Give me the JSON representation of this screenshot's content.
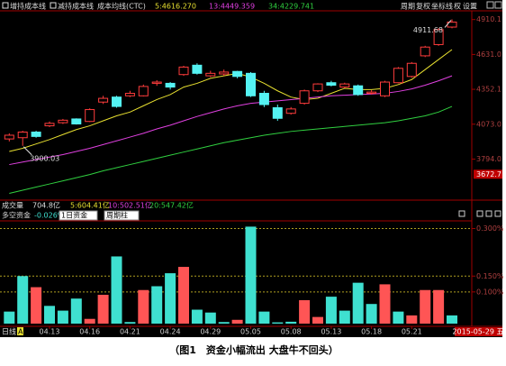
{
  "toolbar": {
    "left": [
      "增持成本线",
      "减持成本线",
      "成本均线(CTC)"
    ],
    "right": [
      "周期",
      "复权",
      "坐标线",
      "权",
      "设置"
    ]
  },
  "volume_header": [
    "成交量",
    "704.8亿",
    "5:604.41亿",
    "10:502.51亿",
    "20:547.42亿"
  ],
  "indicator_header": {
    "title": "多空资金",
    "current": "-0.026%",
    "dropdowns": [
      "1日资金",
      "周期柱"
    ]
  },
  "status": {
    "period": "日线",
    "mode": "A",
    "date": "2015-05-29 五"
  },
  "caption": "（图1　资金小幅流出 大盘牛不回头）",
  "chart_data": [
    {
      "type": "candlestick",
      "up_color": "#ff3c3c",
      "down_color": "#54f2f2",
      "grid": false,
      "open": [
        3955,
        3965,
        4010,
        4060,
        4085,
        4115,
        4095,
        4250,
        4290,
        4300,
        4300,
        4400,
        4400,
        4470,
        4545,
        4460,
        4475,
        4495,
        4480,
        4320,
        4205,
        4160,
        4240,
        4340,
        4405,
        4370,
        4380,
        4320,
        4300,
        4405,
        4455,
        4620,
        4710,
        4850
      ],
      "high": [
        4000,
        4020,
        4020,
        4095,
        4115,
        4120,
        4200,
        4300,
        4300,
        4340,
        4390,
        4425,
        4410,
        4540,
        4560,
        4500,
        4510,
        4500,
        4490,
        4340,
        4230,
        4210,
        4350,
        4400,
        4420,
        4405,
        4390,
        4345,
        4420,
        4530,
        4570,
        4700,
        4840,
        4911.68
      ],
      "low": [
        3935,
        3900.03,
        3965,
        4050,
        4075,
        4070,
        4090,
        4235,
        4205,
        4290,
        4295,
        4380,
        4350,
        4460,
        4470,
        4450,
        4460,
        4440,
        4290,
        4210,
        4100,
        4150,
        4230,
        4330,
        4375,
        4360,
        4300,
        4310,
        4290,
        4400,
        4445,
        4610,
        4700,
        4840
      ],
      "close": [
        3985,
        4010,
        3975,
        4080,
        4105,
        4075,
        4190,
        4280,
        4215,
        4320,
        4375,
        4410,
        4370,
        4530,
        4480,
        4480,
        4490,
        4455,
        4300,
        4230,
        4120,
        4195,
        4340,
        4395,
        4385,
        4395,
        4310,
        4330,
        4410,
        4520,
        4560,
        4690,
        4830,
        4890
      ],
      "series": [
        {
          "name": "5:4616.270",
          "color": "#e8e030",
          "values": [
            3855,
            3880,
            3915,
            3950,
            3990,
            4030,
            4060,
            4100,
            4140,
            4170,
            4220,
            4270,
            4310,
            4370,
            4400,
            4440,
            4460,
            4480,
            4450,
            4400,
            4340,
            4290,
            4270,
            4280,
            4320,
            4360,
            4350,
            4350,
            4360,
            4390,
            4430,
            4510,
            4590,
            4670
          ]
        },
        {
          "name": "13:4449.359",
          "color": "#e040e0",
          "values": [
            3750,
            3770,
            3790,
            3810,
            3830,
            3855,
            3880,
            3910,
            3940,
            3970,
            4000,
            4035,
            4065,
            4100,
            4135,
            4165,
            4195,
            4220,
            4240,
            4250,
            4260,
            4270,
            4280,
            4290,
            4300,
            4305,
            4310,
            4315,
            4320,
            4335,
            4355,
            4385,
            4420,
            4460
          ]
        },
        {
          "name": "34:4229.741",
          "color": "#30d040",
          "values": [
            3520,
            3545,
            3570,
            3595,
            3620,
            3645,
            3670,
            3700,
            3725,
            3750,
            3775,
            3800,
            3825,
            3850,
            3875,
            3900,
            3925,
            3945,
            3965,
            3985,
            4000,
            4015,
            4025,
            4035,
            4045,
            4055,
            4065,
            4075,
            4085,
            4100,
            4120,
            4140,
            4170,
            4215
          ]
        }
      ],
      "ylim": [
        3480,
        4980
      ],
      "yticks": [
        4910.1,
        {
          "value": 4631,
          "label": "4631.0"
        },
        4352.1,
        {
          "value": 4073,
          "label": "4073.0"
        },
        {
          "value": 3794,
          "label": "3794.0"
        }
      ],
      "cursor_price": 3672.7
    },
    {
      "type": "bar",
      "grid": true,
      "categories": [
        null,
        null,
        null,
        "04.13",
        null,
        null,
        "04.16",
        null,
        null,
        "04.21",
        null,
        null,
        "04.24",
        null,
        null,
        "04.29",
        null,
        null,
        "05.05",
        null,
        null,
        "05.08",
        null,
        null,
        "05.13",
        null,
        null,
        "05.18",
        null,
        null,
        "05.21",
        null,
        null,
        null
      ],
      "values": [
        0.038,
        0.15,
        0.115,
        0.056,
        0.041,
        0.079,
        0.015,
        0.091,
        0.212,
        0.005,
        0.106,
        0.118,
        0.159,
        0.179,
        0.044,
        0.035,
        0.005,
        0.012,
        0.306,
        0.038,
        0.004,
        0.006,
        0.074,
        0.021,
        0.085,
        0.041,
        0.129,
        0.062,
        0.124,
        0.038,
        0.026,
        0.106,
        0.106,
        0.026
      ],
      "colors": [
        "#3fe0d0",
        "#3fe0d0",
        "#ff5555",
        "#3fe0d0",
        "#3fe0d0",
        "#3fe0d0",
        "#ff5555",
        "#ff5555",
        "#3fe0d0",
        "#3fe0d0",
        "#ff5555",
        "#3fe0d0",
        "#3fe0d0",
        "#ff5555",
        "#3fe0d0",
        "#3fe0d0",
        "#3fe0d0",
        "#ff5555",
        "#3fe0d0",
        "#3fe0d0",
        "#3fe0d0",
        "#3fe0d0",
        "#ff5555",
        "#ff5555",
        "#3fe0d0",
        "#3fe0d0",
        "#3fe0d0",
        "#3fe0d0",
        "#ff5555",
        "#3fe0d0",
        "#ff5555",
        "#ff5555",
        "#ff5555",
        "#3fe0d0"
      ],
      "ylim": [
        0,
        0.31
      ],
      "yticks": [
        {
          "value": 0.3,
          "label": "0.300%"
        },
        {
          "value": 0.15,
          "label": "0.150%"
        },
        {
          "value": 0.1,
          "label": "0.100%"
        }
      ]
    }
  ]
}
